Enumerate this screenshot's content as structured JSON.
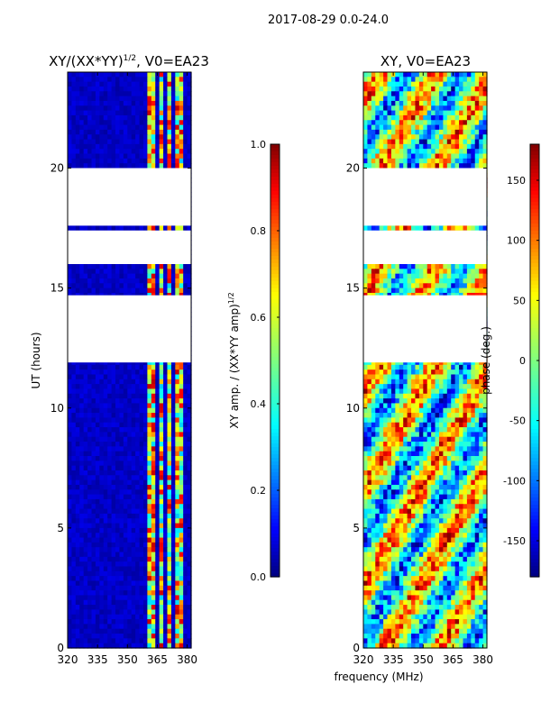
{
  "figure_title": "2017-08-29 0.0-24.0",
  "shared_xlabel": "frequency (MHz)",
  "colors": {
    "stop0": "#00007f",
    "stop1": "#0000ff",
    "stop2": "#00ffff",
    "stop3": "#7fff7f",
    "stop4": "#ffff00",
    "stop5": "#ff0000",
    "stop6": "#7f0000",
    "gap": "#ffffff"
  },
  "chart_data": [
    {
      "type": "heatmap",
      "title_main": "XY/(XX*YY)",
      "title_sup": "1/2",
      "title_tail": ", V0=EA23",
      "xlabel": "",
      "ylabel": "UT (hours)",
      "xlim": [
        320,
        382
      ],
      "ylim": [
        0,
        24
      ],
      "xticks": [
        320,
        335,
        350,
        365,
        380
      ],
      "yticks": [
        0,
        5,
        10,
        15,
        20
      ],
      "data_gaps_hours": [
        [
          17.6,
          20.0
        ],
        [
          16.0,
          17.4
        ],
        [
          11.9,
          14.7
        ]
      ],
      "bright_channels_mhz": [
        [
          360,
          364
        ],
        [
          366,
          368
        ],
        [
          370,
          372
        ],
        [
          374,
          378
        ]
      ],
      "colorbar": {
        "label_main": "XY amp. / (XX*YY amp)",
        "label_sup": "1/2",
        "range": [
          0.0,
          1.0
        ],
        "ticks": [
          "0.0",
          "0.2",
          "0.4",
          "0.6",
          "0.8",
          "1.0"
        ]
      }
    },
    {
      "type": "heatmap",
      "title": "XY, V0=EA23",
      "xlabel": "frequency (MHz)",
      "ylabel": "",
      "xlim": [
        320,
        382
      ],
      "ylim": [
        0,
        24
      ],
      "xticks": [
        320,
        335,
        350,
        365,
        380
      ],
      "yticks": [
        0,
        5,
        10,
        15,
        20
      ],
      "data_gaps_hours": [
        [
          17.6,
          20.0
        ],
        [
          16.0,
          17.4
        ],
        [
          11.9,
          14.7
        ]
      ],
      "colorbar": {
        "label": "phase (deg.)",
        "range": [
          -180,
          180
        ],
        "ticks": [
          "-150",
          "-100",
          "-50",
          "0",
          "50",
          "100",
          "150"
        ]
      }
    }
  ]
}
